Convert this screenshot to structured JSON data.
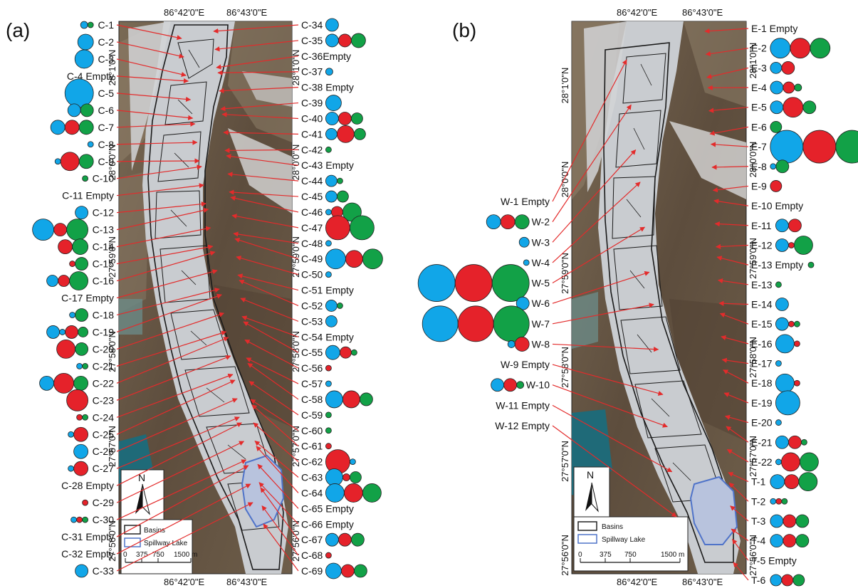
{
  "colors": {
    "blue": "#11a6e8",
    "red": "#e5222a",
    "green": "#12a147",
    "arrow": "#e32b2b",
    "basin": "#1a1a1a",
    "lake": "#4f73c9"
  },
  "panel_a": {
    "label": "(a)",
    "top_coords": [
      "86°42'0\"E",
      "86°43'0\"E"
    ],
    "bottom_coords": [
      "86°42'0\"E",
      "86°43'0\"E"
    ],
    "left_coords": [
      "28°1'0\"N",
      "28°0'0\"N",
      "27°59'0\"N",
      "27°58'0\"N",
      "27°57'0\"N",
      "27°56'0\"N"
    ],
    "right_coords": [
      "28°1'0\"N",
      "28°0'0\"N",
      "27°59'0\"N",
      "27°58'0\"N",
      "27°57'0\"N",
      "27°56'0\"N"
    ],
    "left_items": [
      {
        "label": "C-1"
      },
      {
        "label": "C-2"
      },
      {
        "label": "C-3"
      },
      {
        "label": "C-4 Empty"
      },
      {
        "label": "C-5"
      },
      {
        "label": "C-6"
      },
      {
        "label": "C-7"
      },
      {
        "label": "C-8"
      },
      {
        "label": "C-9"
      },
      {
        "label": "C-10"
      },
      {
        "label": "C-11 Empty"
      },
      {
        "label": "C-12"
      },
      {
        "label": "C-13"
      },
      {
        "label": "C-14"
      },
      {
        "label": "C-15"
      },
      {
        "label": "C-16"
      },
      {
        "label": "C-17 Empty"
      },
      {
        "label": "C-18"
      },
      {
        "label": "C-19"
      },
      {
        "label": "C-20"
      },
      {
        "label": "C-21"
      },
      {
        "label": "C-22"
      },
      {
        "label": "C-23"
      },
      {
        "label": "C-24"
      },
      {
        "label": "C-25"
      },
      {
        "label": "C-26"
      },
      {
        "label": "C-27"
      },
      {
        "label": "C-28 Empty"
      },
      {
        "label": "C-29"
      },
      {
        "label": "C-30"
      },
      {
        "label": "C-31 Empty"
      },
      {
        "label": "C-32 Empty"
      },
      {
        "label": "C-33"
      }
    ],
    "right_items": [
      {
        "label": "C-34"
      },
      {
        "label": "C-35"
      },
      {
        "label": "C-36Empty"
      },
      {
        "label": "C-37"
      },
      {
        "label": "C-38 Empty"
      },
      {
        "label": "C-39"
      },
      {
        "label": "C-40"
      },
      {
        "label": "C-41"
      },
      {
        "label": "C-42"
      },
      {
        "label": "C-43 Empty"
      },
      {
        "label": "C-44"
      },
      {
        "label": "C-45"
      },
      {
        "label": "C-46"
      },
      {
        "label": "C-47"
      },
      {
        "label": "C-48"
      },
      {
        "label": "C-49"
      },
      {
        "label": "C-50"
      },
      {
        "label": "C-51 Empty"
      },
      {
        "label": "C-52"
      },
      {
        "label": "C-53"
      },
      {
        "label": "C-54 Empty"
      },
      {
        "label": "C-55"
      },
      {
        "label": "C-56"
      },
      {
        "label": "C-57"
      },
      {
        "label": "C-58"
      },
      {
        "label": "C-59"
      },
      {
        "label": "C-60"
      },
      {
        "label": "C-61"
      },
      {
        "label": "C-62"
      },
      {
        "label": "C-63"
      },
      {
        "label": "C-64"
      },
      {
        "label": "C-65 Empty"
      },
      {
        "label": "C-66 Empty"
      },
      {
        "label": "C-67"
      },
      {
        "label": "C-68"
      },
      {
        "label": "C-69"
      }
    ],
    "legend": {
      "north": "N",
      "basins": "Basins",
      "lake": "Spillway Lake",
      "scale_ticks": [
        "0",
        "375",
        "750",
        "1500 m"
      ]
    }
  },
  "panel_b": {
    "label": "(b)",
    "top_coords": [
      "86°42'0\"E",
      "86°43'0\"E"
    ],
    "bottom_coords": [
      "86°42'0\"E",
      "86°43'0\"E"
    ],
    "left_coords": [
      "28°1'0\"N",
      "28°0'0\"N",
      "27°59'0\"N",
      "27°58'0\"N",
      "27°57'0\"N",
      "27°56'0\"N"
    ],
    "right_coords": [
      "28°1'0\"N",
      "28°0'0\"N",
      "27°59'0\"N",
      "27°58'0\"N",
      "27°57'0\"N",
      "27°56'0\"N"
    ],
    "left_items": [
      {
        "label": "W-1 Empty"
      },
      {
        "label": "W-2"
      },
      {
        "label": "W-3"
      },
      {
        "label": "W-4"
      },
      {
        "label": "W-5"
      },
      {
        "label": "W-6"
      },
      {
        "label": "W-7"
      },
      {
        "label": "W-8"
      },
      {
        "label": "W-9 Empty"
      },
      {
        "label": "W-10"
      },
      {
        "label": "W-11 Empty"
      },
      {
        "label": "W-12 Empty"
      }
    ],
    "right_items": [
      {
        "label": "E-1 Empty"
      },
      {
        "label": "E-2"
      },
      {
        "label": "E-3"
      },
      {
        "label": "E-4"
      },
      {
        "label": "E-5"
      },
      {
        "label": "E-6"
      },
      {
        "label": "E-7"
      },
      {
        "label": "E-8"
      },
      {
        "label": "E-9"
      },
      {
        "label": "E-10 Empty"
      },
      {
        "label": "E-11"
      },
      {
        "label": "E-12"
      },
      {
        "label": "E-13 Empty"
      },
      {
        "label": "E-13"
      },
      {
        "label": "E-14"
      },
      {
        "label": "E-15"
      },
      {
        "label": "E-16"
      },
      {
        "label": "E-17"
      },
      {
        "label": "E-18"
      },
      {
        "label": "E-19"
      },
      {
        "label": "E-20"
      },
      {
        "label": "E-21"
      },
      {
        "label": "E-22"
      },
      {
        "label": "T-1"
      },
      {
        "label": "T-2"
      },
      {
        "label": "T-3"
      },
      {
        "label": "T-4"
      },
      {
        "label": "T-5 Empty"
      },
      {
        "label": "T-6"
      }
    ],
    "legend": {
      "north": "N",
      "basins": "Basins",
      "lake": "Spillway Lake",
      "scale_ticks": [
        "0",
        "375",
        "750",
        "1500 m"
      ]
    }
  }
}
